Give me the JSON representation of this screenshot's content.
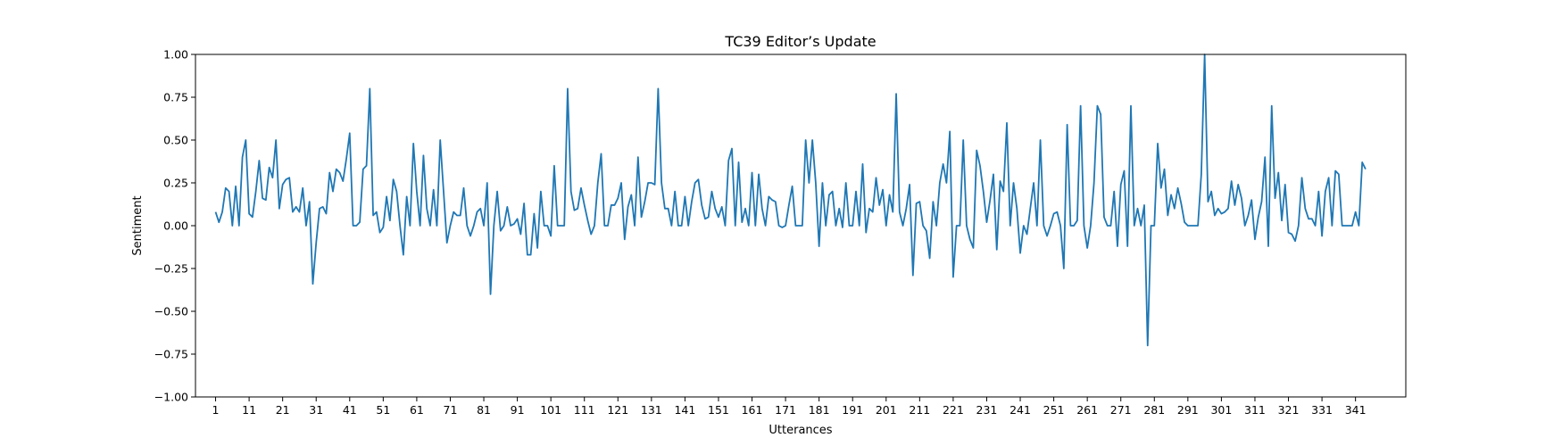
{
  "chart_data": {
    "type": "line",
    "title": "TC39 Editor’s Update",
    "xlabel": "Utterances",
    "ylabel": "Sentiment",
    "xlim": [
      -5,
      356
    ],
    "ylim": [
      -1.0,
      1.0
    ],
    "x_ticks": [
      1,
      11,
      21,
      31,
      41,
      51,
      61,
      71,
      81,
      91,
      101,
      111,
      121,
      131,
      141,
      151,
      161,
      171,
      181,
      191,
      201,
      211,
      221,
      231,
      241,
      251,
      261,
      271,
      281,
      291,
      301,
      311,
      321,
      331,
      341
    ],
    "y_ticks": [
      -1.0,
      -0.75,
      -0.5,
      -0.25,
      0.0,
      0.25,
      0.5,
      0.75,
      1.0
    ],
    "y_tick_labels": [
      "−1.00",
      "−0.75",
      "−0.50",
      "−0.25",
      "0.00",
      "0.25",
      "0.50",
      "0.75",
      "1.00"
    ],
    "grid": false,
    "legend": "none",
    "color": "#1f77b4",
    "x_start": 1,
    "series": [
      {
        "values": [
          0.08,
          0.02,
          0.08,
          0.22,
          0.2,
          0.0,
          0.23,
          0.0,
          0.4,
          0.5,
          0.07,
          0.05,
          0.2,
          0.38,
          0.16,
          0.15,
          0.34,
          0.28,
          0.5,
          0.1,
          0.24,
          0.27,
          0.28,
          0.08,
          0.11,
          0.08,
          0.22,
          0.0,
          0.14,
          -0.34,
          -0.1,
          0.1,
          0.11,
          0.07,
          0.31,
          0.2,
          0.33,
          0.31,
          0.26,
          0.39,
          0.54,
          0.0,
          0.0,
          0.02,
          0.33,
          0.35,
          0.8,
          0.06,
          0.08,
          -0.04,
          -0.01,
          0.17,
          0.03,
          0.27,
          0.2,
          0.0,
          -0.17,
          0.17,
          0.0,
          0.48,
          0.2,
          0.0,
          0.41,
          0.1,
          0.0,
          0.21,
          0.0,
          0.5,
          0.2,
          -0.1,
          0.0,
          0.08,
          0.06,
          0.06,
          0.22,
          0.0,
          -0.06,
          0.0,
          0.08,
          0.1,
          0.0,
          0.25,
          -0.4,
          0.0,
          0.2,
          -0.03,
          0.0,
          0.11,
          0.0,
          0.01,
          0.04,
          -0.05,
          0.13,
          -0.17,
          -0.17,
          0.07,
          -0.13,
          0.2,
          0.0,
          0.0,
          -0.06,
          0.35,
          0.0,
          0.0,
          0.0,
          0.8,
          0.2,
          0.09,
          0.1,
          0.22,
          0.12,
          0.03,
          -0.05,
          0.0,
          0.25,
          0.42,
          0.0,
          0.0,
          0.12,
          0.12,
          0.16,
          0.25,
          -0.08,
          0.11,
          0.18,
          0.0,
          0.4,
          0.05,
          0.14,
          0.25,
          0.25,
          0.24,
          0.8,
          0.25,
          0.1,
          0.1,
          0.0,
          0.2,
          0.0,
          0.0,
          0.17,
          0.0,
          0.14,
          0.25,
          0.27,
          0.12,
          0.04,
          0.05,
          0.2,
          0.1,
          0.05,
          0.11,
          0.0,
          0.38,
          0.45,
          0.0,
          0.37,
          0.02,
          0.1,
          0.0,
          0.31,
          0.0,
          0.3,
          0.1,
          0.0,
          0.17,
          0.15,
          0.14,
          0.0,
          -0.01,
          0.0,
          0.12,
          0.23,
          0.0,
          0.0,
          0.0,
          0.5,
          0.25,
          0.5,
          0.25,
          -0.12,
          0.25,
          0.0,
          0.18,
          0.2,
          0.0,
          0.1,
          -0.01,
          0.25,
          0.0,
          0.0,
          0.2,
          0.0,
          0.36,
          -0.04,
          0.1,
          0.08,
          0.28,
          0.12,
          0.21,
          0.0,
          0.18,
          0.08,
          0.77,
          0.08,
          0.0,
          0.1,
          0.24,
          -0.29,
          0.13,
          0.14,
          0.0,
          -0.03,
          -0.19,
          0.14,
          0.0,
          0.25,
          0.36,
          0.25,
          0.55,
          -0.3,
          0.0,
          0.0,
          0.5,
          0.0,
          -0.08,
          -0.13,
          0.44,
          0.35,
          0.2,
          0.02,
          0.15,
          0.3,
          -0.14,
          0.26,
          0.2,
          0.6,
          0.0,
          0.25,
          0.1,
          -0.16,
          0.0,
          -0.05,
          0.1,
          0.25,
          0.0,
          0.5,
          0.0,
          -0.06,
          0.0,
          0.07,
          0.08,
          0.0,
          -0.25,
          0.59,
          0.0,
          0.0,
          0.03,
          0.7,
          0.0,
          -0.13,
          0.0,
          0.25,
          0.7,
          0.65,
          0.05,
          0.0,
          0.0,
          0.2,
          -0.12,
          0.24,
          0.32,
          -0.12,
          0.7,
          0.0,
          0.1,
          0.0,
          0.12,
          -0.7,
          0.0,
          0.0,
          0.48,
          0.22,
          0.33,
          0.06,
          0.18,
          0.1,
          0.22,
          0.13,
          0.02,
          0.0,
          0.0,
          0.0,
          0.0,
          0.3,
          1.0,
          0.14,
          0.2,
          0.06,
          0.1,
          0.07,
          0.08,
          0.1,
          0.26,
          0.12,
          0.24,
          0.16,
          0.0,
          0.06,
          0.15,
          -0.08,
          0.05,
          0.14,
          0.4,
          -0.12,
          0.7,
          0.16,
          0.31,
          0.03,
          0.24,
          -0.04,
          -0.05,
          -0.09,
          0.0,
          0.28,
          0.1,
          0.04,
          0.04,
          0.0,
          0.2,
          -0.06,
          0.2,
          0.28,
          0.0,
          0.32,
          0.3,
          0.0,
          0.0,
          0.0,
          0.0,
          0.08,
          0.0,
          0.37,
          0.33
        ]
      }
    ]
  }
}
